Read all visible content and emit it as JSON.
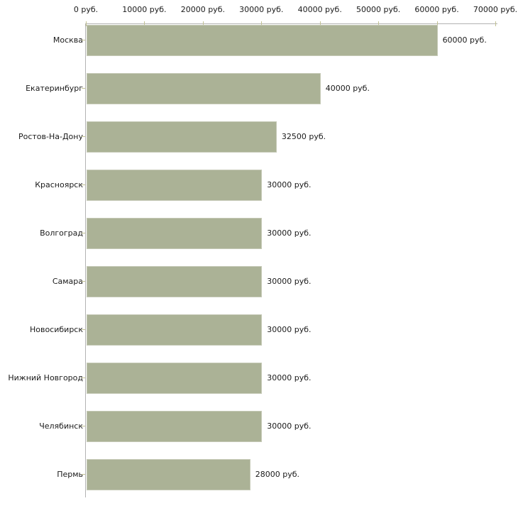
{
  "chart_data": {
    "type": "bar",
    "orientation": "horizontal",
    "title": "",
    "xlabel": "",
    "ylabel": "",
    "unit": "руб.",
    "xlim": [
      0,
      70000
    ],
    "grid": false,
    "legend": false,
    "categories": [
      "Москва",
      "Екатеринбург",
      "Ростов-На-Дону",
      "Красноярск",
      "Волгоград",
      "Самара",
      "Новосибирск",
      "Нижний Новгород",
      "Челябинск",
      "Пермь"
    ],
    "values": [
      60000,
      40000,
      32500,
      30000,
      30000,
      30000,
      30000,
      30000,
      30000,
      28000
    ],
    "value_labels": [
      "60000 руб.",
      "40000 руб.",
      "32500 руб.",
      "30000 руб.",
      "30000 руб.",
      "30000 руб.",
      "30000 руб.",
      "30000 руб.",
      "30000 руб.",
      "28000 руб."
    ],
    "x_ticks": [
      0,
      10000,
      20000,
      30000,
      40000,
      50000,
      60000,
      70000
    ],
    "x_tick_labels": [
      "0 руб.",
      "10000 руб.",
      "20000 руб.",
      "30000 руб.",
      "40000 руб.",
      "50000 руб.",
      "60000 руб.",
      "70000 руб."
    ],
    "colors": {
      "bar_fill": "#abb296",
      "bar_border": "#c5c9b6",
      "axis_line": "#b3b3b3",
      "tick_mark": "#c2c293",
      "text": "#1a1a1a",
      "background": "#ffffff"
    }
  }
}
